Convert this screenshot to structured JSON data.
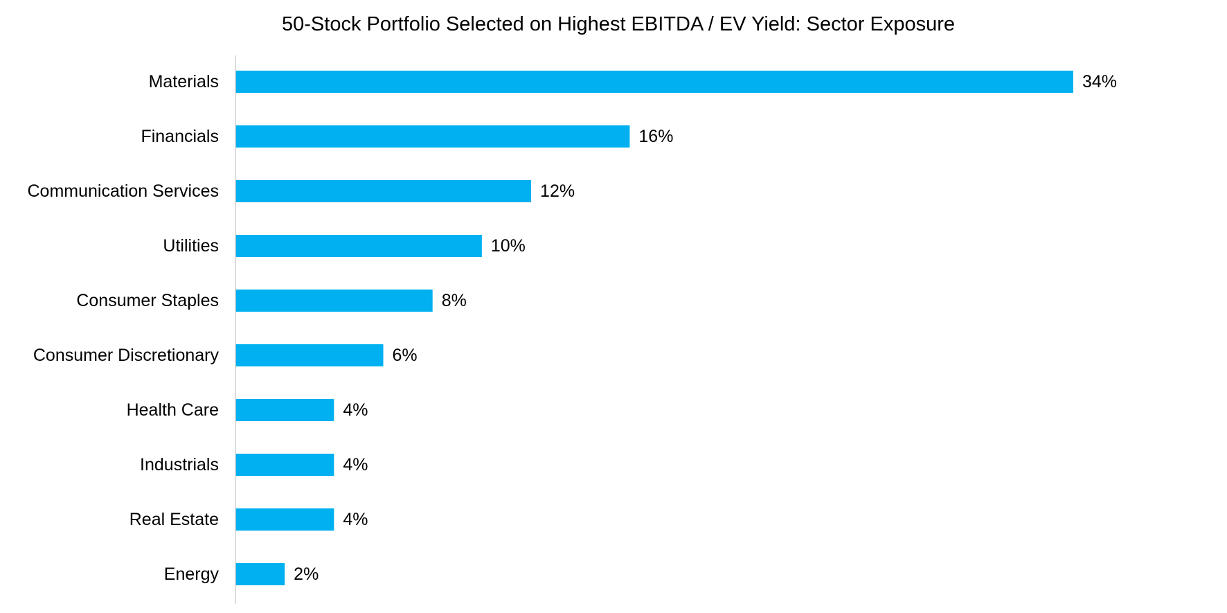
{
  "chart_data": {
    "type": "bar",
    "orientation": "horizontal",
    "title": "50-Stock Portfolio Selected on Highest EBITDA / EV Yield: Sector Exposure",
    "xlabel": "",
    "ylabel": "",
    "categories": [
      "Materials",
      "Financials",
      "Communication Services",
      "Utilities",
      "Consumer Staples",
      "Consumer Discretionary",
      "Health Care",
      "Industrials",
      "Real Estate",
      "Energy"
    ],
    "values": [
      34,
      16,
      12,
      10,
      8,
      6,
      4,
      4,
      4,
      2
    ],
    "value_labels": [
      "34%",
      "16%",
      "12%",
      "10%",
      "8%",
      "6%",
      "4%",
      "4%",
      "4%",
      "2%"
    ],
    "unit": "%",
    "xlim": [
      0,
      34
    ],
    "grid": false,
    "legend": "none",
    "bar_color": "#00B0F0"
  }
}
